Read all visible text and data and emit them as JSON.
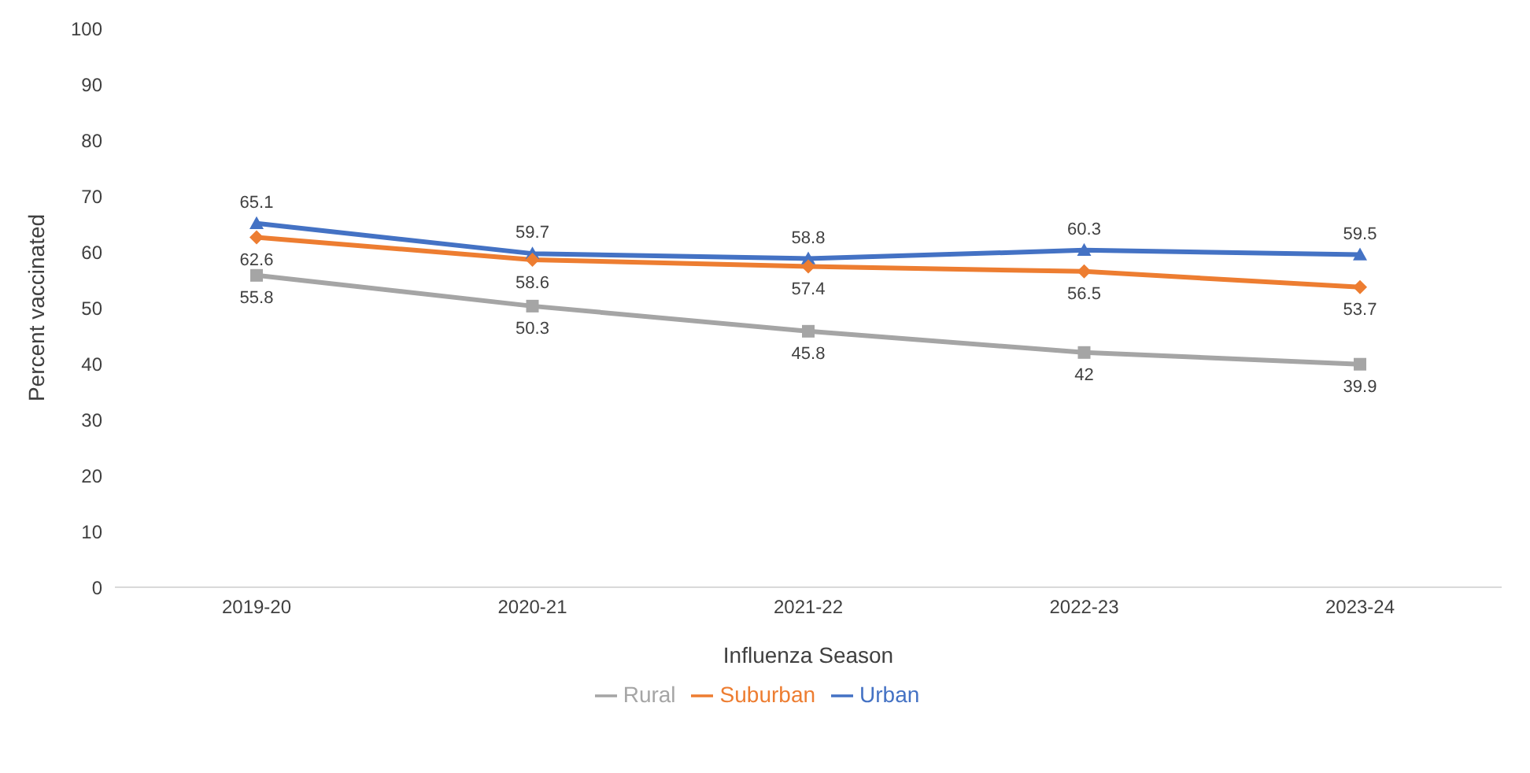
{
  "chart_data": {
    "type": "line",
    "xlabel": "Influenza Season",
    "ylabel": "Percent vaccinated",
    "categories": [
      "2019-20",
      "2020-21",
      "2021-22",
      "2022-23",
      "2023-24"
    ],
    "series": [
      {
        "name": "Urban",
        "color": "#4472c4",
        "marker": "triangle",
        "values": [
          65.1,
          59.7,
          58.8,
          60.3,
          59.5
        ]
      },
      {
        "name": "Suburban",
        "color": "#ed7d31",
        "marker": "diamond",
        "values": [
          62.6,
          58.6,
          57.4,
          56.5,
          53.7
        ]
      },
      {
        "name": "Rural",
        "color": "#a5a5a5",
        "marker": "square",
        "values": [
          55.8,
          50.3,
          45.8,
          42,
          39.9
        ]
      }
    ],
    "ylim": [
      0,
      100
    ],
    "yticks": [
      0,
      10,
      20,
      30,
      40,
      50,
      60,
      70,
      80,
      90,
      100
    ],
    "grid": false,
    "legend": "bottom",
    "data_labels": true
  }
}
